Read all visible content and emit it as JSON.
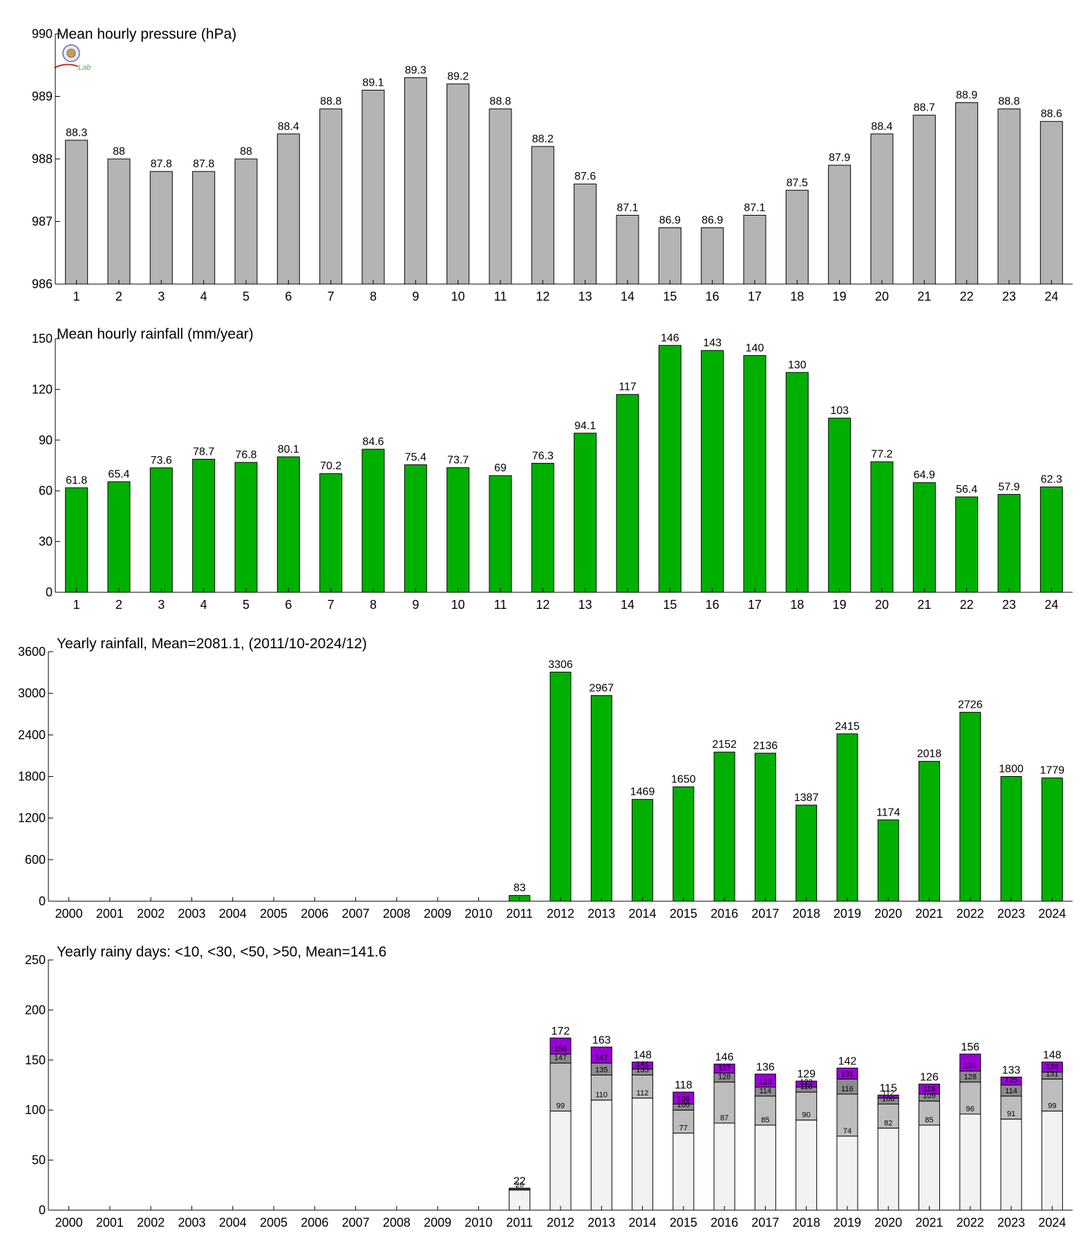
{
  "colors": {
    "pressure_bar": "#b4b4b4",
    "rain_bar": "#00b000",
    "under10": "#f2f2f2",
    "under30": "#bdbdbd",
    "under50": "#8c8c8c",
    "over50": "#9a00d6",
    "axis": "#000000"
  },
  "logo": {
    "text": "Lab"
  },
  "chart_data": [
    {
      "type": "bar",
      "title": "Mean hourly pressure (hPa)",
      "categories": [
        "1",
        "2",
        "3",
        "4",
        "5",
        "6",
        "7",
        "8",
        "9",
        "10",
        "11",
        "12",
        "13",
        "14",
        "15",
        "16",
        "17",
        "18",
        "19",
        "20",
        "21",
        "22",
        "23",
        "24"
      ],
      "values": [
        988.3,
        988.0,
        987.8,
        987.8,
        988.0,
        988.4,
        988.8,
        989.1,
        989.3,
        989.2,
        988.8,
        988.2,
        987.6,
        987.1,
        986.9,
        986.9,
        987.1,
        987.5,
        987.9,
        988.4,
        988.7,
        988.9,
        988.8,
        988.6
      ],
      "data_labels": [
        "88.3",
        "88",
        "87.8",
        "87.8",
        "88",
        "88.4",
        "88.8",
        "89.1",
        "89.3",
        "89.2",
        "88.8",
        "88.2",
        "87.6",
        "87.1",
        "86.9",
        "86.9",
        "87.1",
        "87.5",
        "87.9",
        "88.4",
        "88.7",
        "88.9",
        "88.8",
        "88.6"
      ],
      "ylim": [
        986,
        990
      ],
      "yticks": [
        "986",
        "987",
        "988",
        "989",
        "990"
      ],
      "grid": false
    },
    {
      "type": "bar",
      "title": "Mean hourly rainfall (mm/year)",
      "categories": [
        "1",
        "2",
        "3",
        "4",
        "5",
        "6",
        "7",
        "8",
        "9",
        "10",
        "11",
        "12",
        "13",
        "14",
        "15",
        "16",
        "17",
        "18",
        "19",
        "20",
        "21",
        "22",
        "23",
        "24"
      ],
      "values": [
        61.8,
        65.4,
        73.6,
        78.7,
        76.8,
        80.1,
        70.2,
        84.6,
        75.4,
        73.7,
        69,
        76.3,
        94.1,
        117,
        146,
        143,
        140,
        130,
        103,
        77.2,
        64.9,
        56.4,
        57.9,
        62.3
      ],
      "data_labels": [
        "61.8",
        "65.4",
        "73.6",
        "78.7",
        "76.8",
        "80.1",
        "70.2",
        "84.6",
        "75.4",
        "73.7",
        "69",
        "76.3",
        "94.1",
        "117",
        "146",
        "143",
        "140",
        "130",
        "103",
        "77.2",
        "64.9",
        "56.4",
        "57.9",
        "62.3"
      ],
      "ylim": [
        0,
        150
      ],
      "yticks": [
        "0",
        "30",
        "60",
        "90",
        "120",
        "150"
      ],
      "grid": false
    },
    {
      "type": "bar",
      "title": "Yearly rainfall, Mean=2081.1, (2011/10-2024/12)",
      "categories": [
        "2000",
        "2001",
        "2002",
        "2003",
        "2004",
        "2005",
        "2006",
        "2007",
        "2008",
        "2009",
        "2010",
        "2011",
        "2012",
        "2013",
        "2014",
        "2015",
        "2016",
        "2017",
        "2018",
        "2019",
        "2020",
        "2021",
        "2022",
        "2023",
        "2024"
      ],
      "values": [
        null,
        null,
        null,
        null,
        null,
        null,
        null,
        null,
        null,
        null,
        null,
        83,
        3306,
        2967,
        1469,
        1650,
        2152,
        2136,
        1387,
        2415,
        1174,
        2018,
        2726,
        1800,
        1779
      ],
      "data_labels": [
        "",
        "",
        "",
        "",
        "",
        "",
        "",
        "",
        "",
        "",
        "",
        "83",
        "3306",
        "2967",
        "1469",
        "1650",
        "2152",
        "2136",
        "1387",
        "2415",
        "1174",
        "2018",
        "2726",
        "1800",
        "1779"
      ],
      "ylim": [
        0,
        3600
      ],
      "yticks": [
        "0",
        "600",
        "1200",
        "1800",
        "2400",
        "3000",
        "3600"
      ],
      "grid": false
    },
    {
      "type": "bar",
      "stacked": true,
      "title": "Yearly rainy days: <10, <30, <50, >50, Mean=141.6",
      "categories": [
        "2000",
        "2001",
        "2002",
        "2003",
        "2004",
        "2005",
        "2006",
        "2007",
        "2008",
        "2009",
        "2010",
        "2011",
        "2012",
        "2013",
        "2014",
        "2015",
        "2016",
        "2017",
        "2018",
        "2019",
        "2020",
        "2021",
        "2022",
        "2023",
        "2024"
      ],
      "cumulative": {
        "under10": [
          null,
          null,
          null,
          null,
          null,
          null,
          null,
          null,
          null,
          null,
          null,
          20,
          99,
          110,
          112,
          77,
          87,
          85,
          90,
          74,
          82,
          85,
          96,
          91,
          99
        ],
        "under30": [
          null,
          null,
          null,
          null,
          null,
          null,
          null,
          null,
          null,
          null,
          null,
          21,
          147,
          135,
          135,
          100,
          128,
          114,
          118,
          116,
          106,
          109,
          128,
          114,
          131
        ],
        "under50": [
          null,
          null,
          null,
          null,
          null,
          null,
          null,
          null,
          null,
          null,
          null,
          22,
          156,
          147,
          141,
          106,
          137,
          123,
          123,
          131,
          112,
          116,
          139,
          125,
          138
        ],
        "total": [
          null,
          null,
          null,
          null,
          null,
          null,
          null,
          null,
          null,
          null,
          null,
          22,
          172,
          163,
          148,
          118,
          146,
          136,
          129,
          142,
          115,
          126,
          156,
          133,
          148
        ]
      },
      "labels_under10": [
        "",
        "",
        "",
        "",
        "",
        "",
        "",
        "",
        "",
        "",
        "",
        "20",
        "99",
        "110",
        "112",
        "77",
        "87",
        "85",
        "90",
        "74",
        "82",
        "85",
        "96",
        "91",
        "99"
      ],
      "labels_under30": [
        "",
        "",
        "",
        "",
        "",
        "",
        "",
        "",
        "",
        "",
        "",
        "",
        "147",
        "135",
        "135",
        "100",
        "128",
        "114",
        "118",
        "116",
        "106",
        "109",
        "128",
        "114",
        "131"
      ],
      "labels_under50": [
        "",
        "",
        "",
        "",
        "",
        "",
        "",
        "",
        "",
        "",
        "",
        "",
        "156",
        "147",
        "141",
        "106",
        "137",
        "123",
        "123",
        "131",
        "112",
        "116",
        "139",
        "125",
        "138"
      ],
      "labels_total": [
        "",
        "",
        "",
        "",
        "",
        "",
        "",
        "",
        "",
        "",
        "",
        "22",
        "172",
        "163",
        "148",
        "118",
        "146",
        "136",
        "129",
        "142",
        "115",
        "126",
        "156",
        "133",
        "148"
      ],
      "ylim": [
        0,
        250
      ],
      "yticks": [
        "0",
        "50",
        "100",
        "150",
        "200",
        "250"
      ],
      "grid": false
    }
  ]
}
